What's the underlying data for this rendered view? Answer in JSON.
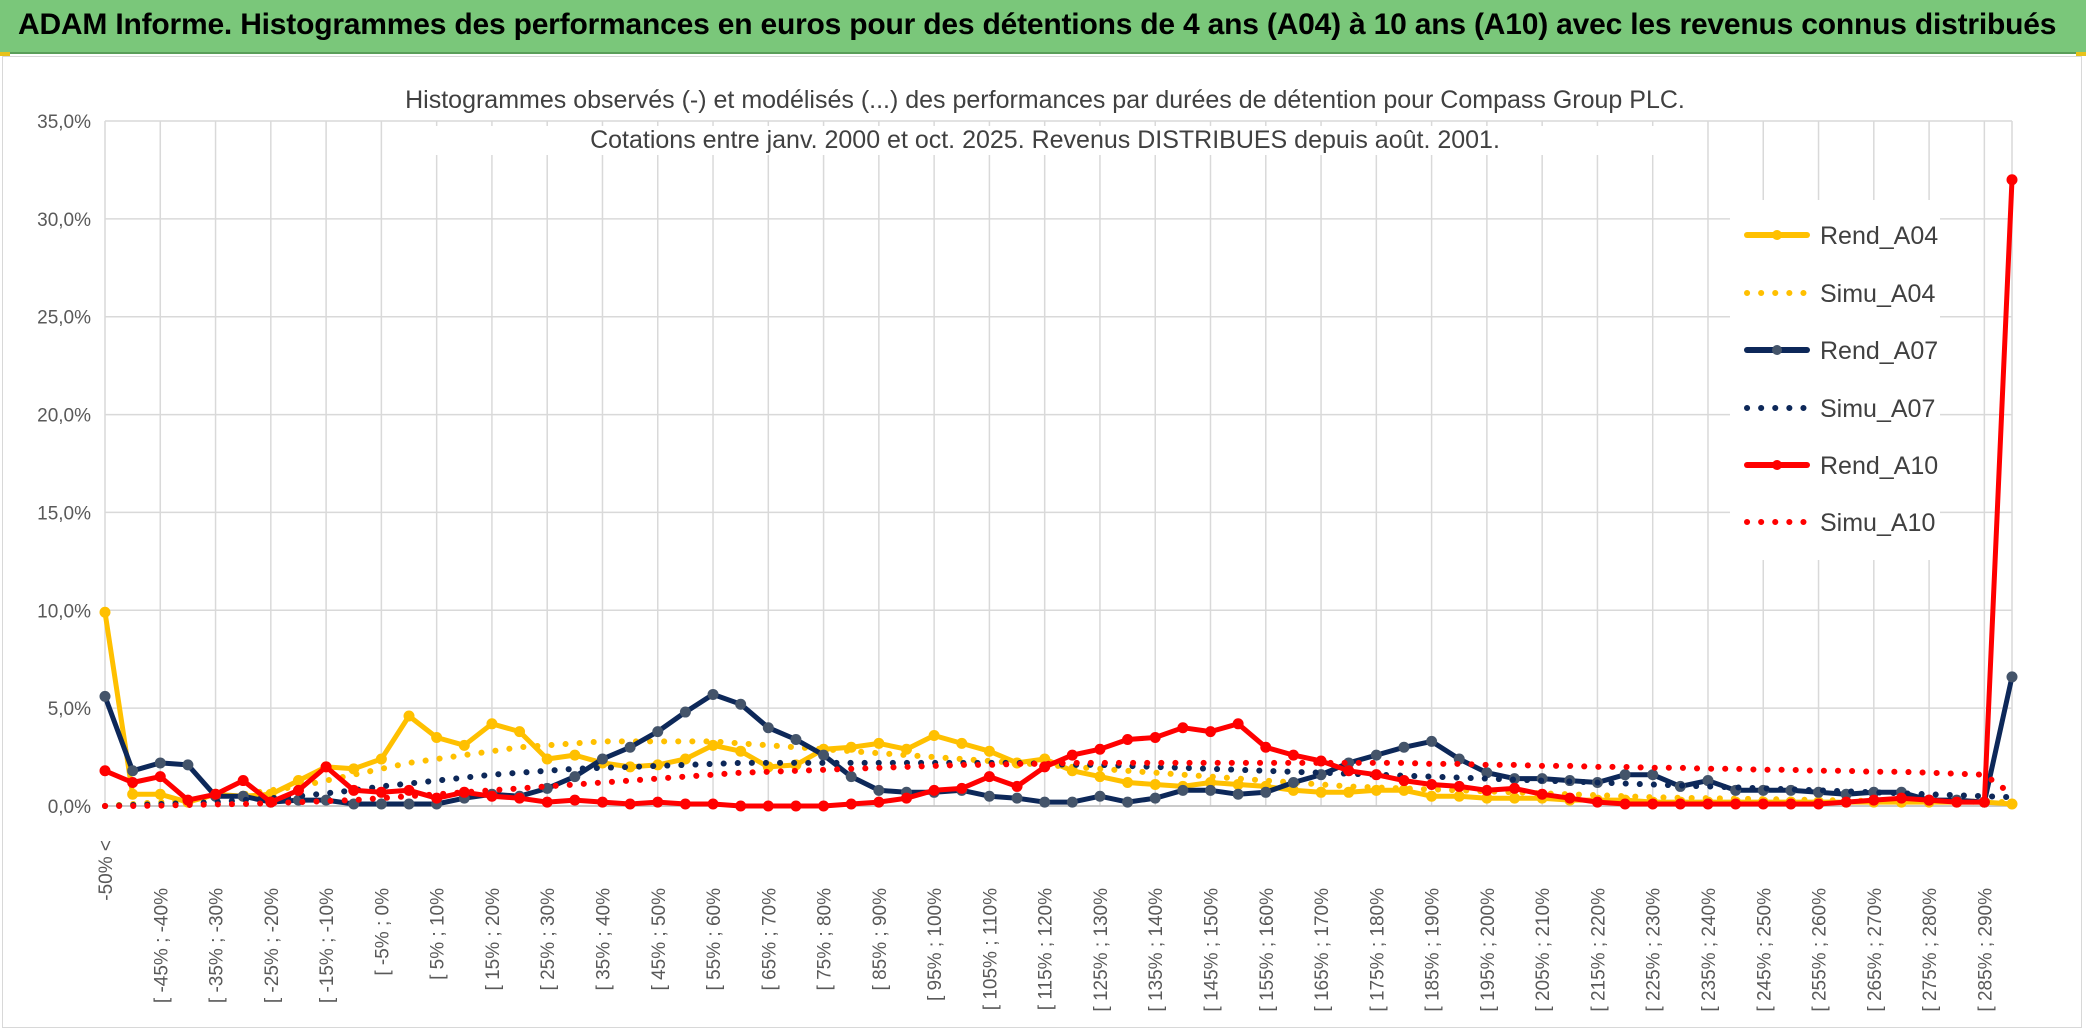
{
  "banner": {
    "title": "ADAM Informe. Histogrammes des performances en euros pour des détentions de 4 ans (A04) à 10 ans (A10) avec les revenus connus distribués"
  },
  "chart_data": {
    "type": "line",
    "title": "Histogrammes observés (-) et modélisés (...) des performances par durées de détention pour Compass Group PLC.",
    "subtitle": "Cotations entre janv. 2000 et oct. 2025. Revenus DISTRIBUES depuis août. 2001.",
    "xlabel": "",
    "ylabel": "",
    "ylim": [
      0,
      35
    ],
    "y_ticks": [
      "0,0%",
      "5,0%",
      "10,0%",
      "15,0%",
      "20,0%",
      "25,0%",
      "30,0%",
      "35,0%"
    ],
    "grid": true,
    "legend_position": "right",
    "x_labels": [
      "-50% <",
      "[ -45% ; -40%",
      "[ -35% ; -30%",
      "[ -25% ; -20%",
      "[ -15% ; -10%",
      "[ -5% ; 0%",
      "[ 5% ; 10%",
      "[ 15% ; 20%",
      "[ 25% ; 30%",
      "[ 35% ; 40%",
      "[ 45% ; 50%",
      "[ 55% ; 60%",
      "[ 65% ; 70%",
      "[ 75% ; 80%",
      "[ 85% ; 90%",
      "[ 95% ; 100%",
      "[ 105% ; 110%",
      "[ 115% ; 120%",
      "[ 125% ; 130%",
      "[ 135% ; 140%",
      "[ 145% ; 150%",
      "[ 155% ; 160%",
      "[ 165% ; 170%",
      "[ 175% ; 180%",
      "[ 185% ; 190%",
      "[ 195% ; 200%",
      "[ 205% ; 210%",
      "[ 215% ; 220%",
      "[ 225% ; 230%",
      "[ 235% ; 240%",
      "[ 245% ; 250%",
      "[ 255% ; 260%",
      "[ 265% ; 270%",
      "[ 275% ; 280%",
      "[ 285% ; 290%"
    ],
    "n_bins": 70,
    "series": [
      {
        "name": "Rend_A04",
        "color": "#ffc000",
        "style": "solid",
        "markers": true,
        "values": [
          9.9,
          0.6,
          0.6,
          0.2,
          0.6,
          0.5,
          0.6,
          1.3,
          2.0,
          1.9,
          2.4,
          4.6,
          3.5,
          3.1,
          4.2,
          3.8,
          2.4,
          2.6,
          2.2,
          2.0,
          2.1,
          2.4,
          3.1,
          2.8,
          2.0,
          2.1,
          2.9,
          3.0,
          3.2,
          2.9,
          3.6,
          3.2,
          2.8,
          2.2,
          2.4,
          1.8,
          1.5,
          1.2,
          1.1,
          1.0,
          1.2,
          1.1,
          1.0,
          0.8,
          0.7,
          0.7,
          0.8,
          0.8,
          0.5,
          0.5,
          0.4,
          0.4,
          0.4,
          0.3,
          0.3,
          0.3,
          0.2,
          0.2,
          0.2,
          0.2,
          0.2,
          0.2,
          0.2,
          0.2,
          0.2,
          0.2,
          0.2,
          0.2,
          0.2,
          0.1
        ]
      },
      {
        "name": "Simu_A04",
        "color": "#ffc000",
        "style": "dotted",
        "markers": false,
        "values": [
          0.0,
          0.1,
          0.2,
          0.3,
          0.4,
          0.6,
          0.8,
          1.0,
          1.3,
          1.6,
          1.9,
          2.2,
          2.4,
          2.6,
          2.8,
          3.0,
          3.1,
          3.2,
          3.3,
          3.3,
          3.3,
          3.3,
          3.3,
          3.2,
          3.1,
          3.0,
          2.9,
          2.8,
          2.7,
          2.6,
          2.5,
          2.4,
          2.3,
          2.2,
          2.1,
          2.0,
          1.9,
          1.8,
          1.7,
          1.6,
          1.5,
          1.4,
          1.3,
          1.2,
          1.1,
          1.0,
          0.95,
          0.9,
          0.85,
          0.8,
          0.75,
          0.7,
          0.65,
          0.6,
          0.55,
          0.5,
          0.45,
          0.42,
          0.4,
          0.38,
          0.35,
          0.33,
          0.3,
          0.28,
          0.26,
          0.25,
          0.24,
          0.23,
          0.22,
          0.2
        ]
      },
      {
        "name": "Rend_A07",
        "color": "#0d2859",
        "style": "solid",
        "markers": true,
        "values": [
          5.6,
          1.8,
          2.2,
          2.1,
          0.5,
          0.5,
          0.2,
          0.3,
          0.3,
          0.1,
          0.1,
          0.1,
          0.1,
          0.4,
          0.6,
          0.5,
          0.9,
          1.5,
          2.4,
          3.0,
          3.8,
          4.8,
          5.7,
          5.2,
          4.0,
          3.4,
          2.6,
          1.5,
          0.8,
          0.7,
          0.7,
          0.8,
          0.5,
          0.4,
          0.2,
          0.2,
          0.5,
          0.2,
          0.4,
          0.8,
          0.8,
          0.6,
          0.7,
          1.2,
          1.6,
          2.2,
          2.6,
          3.0,
          3.3,
          2.4,
          1.7,
          1.4,
          1.4,
          1.3,
          1.2,
          1.6,
          1.6,
          1.0,
          1.3,
          0.8,
          0.8,
          0.8,
          0.7,
          0.6,
          0.7,
          0.7,
          0.3,
          0.3,
          0.2,
          6.6
        ]
      },
      {
        "name": "Simu_A07",
        "color": "#0d2859",
        "style": "dotted",
        "markers": false,
        "values": [
          0.0,
          0.05,
          0.1,
          0.15,
          0.2,
          0.3,
          0.4,
          0.5,
          0.65,
          0.8,
          1.0,
          1.15,
          1.3,
          1.45,
          1.6,
          1.7,
          1.8,
          1.9,
          1.95,
          2.0,
          2.05,
          2.1,
          2.15,
          2.2,
          2.2,
          2.2,
          2.2,
          2.2,
          2.2,
          2.2,
          2.2,
          2.2,
          2.2,
          2.2,
          2.15,
          2.1,
          2.1,
          2.05,
          2.0,
          1.95,
          1.9,
          1.85,
          1.8,
          1.75,
          1.7,
          1.65,
          1.6,
          1.55,
          1.5,
          1.45,
          1.4,
          1.35,
          1.3,
          1.25,
          1.2,
          1.15,
          1.1,
          1.05,
          1.0,
          0.95,
          0.9,
          0.85,
          0.8,
          0.75,
          0.7,
          0.65,
          0.6,
          0.55,
          0.5,
          0.45
        ]
      },
      {
        "name": "Rend_A10",
        "color": "#ff0000",
        "style": "solid",
        "markers": true,
        "values": [
          1.8,
          1.2,
          1.5,
          0.3,
          0.6,
          1.3,
          0.2,
          0.8,
          2.0,
          0.8,
          0.7,
          0.8,
          0.4,
          0.7,
          0.5,
          0.4,
          0.2,
          0.3,
          0.2,
          0.1,
          0.2,
          0.1,
          0.1,
          0.0,
          0.0,
          0.0,
          0.0,
          0.1,
          0.2,
          0.4,
          0.8,
          0.9,
          1.5,
          1.0,
          2.0,
          2.6,
          2.9,
          3.4,
          3.5,
          4.0,
          3.8,
          4.2,
          3.0,
          2.6,
          2.3,
          1.8,
          1.6,
          1.3,
          1.1,
          1.0,
          0.8,
          0.9,
          0.6,
          0.4,
          0.2,
          0.1,
          0.1,
          0.1,
          0.1,
          0.1,
          0.1,
          0.1,
          0.1,
          0.2,
          0.3,
          0.4,
          0.3,
          0.2,
          0.2,
          32.0
        ]
      },
      {
        "name": "Simu_A10",
        "color": "#ff0000",
        "style": "dotted",
        "markers": false,
        "values": [
          0.0,
          0.0,
          0.02,
          0.05,
          0.08,
          0.1,
          0.15,
          0.2,
          0.25,
          0.3,
          0.4,
          0.5,
          0.6,
          0.7,
          0.8,
          0.9,
          1.0,
          1.1,
          1.2,
          1.3,
          1.4,
          1.5,
          1.6,
          1.7,
          1.75,
          1.8,
          1.85,
          1.9,
          1.95,
          2.0,
          2.05,
          2.1,
          2.1,
          2.15,
          2.15,
          2.2,
          2.2,
          2.2,
          2.2,
          2.2,
          2.2,
          2.2,
          2.2,
          2.2,
          2.2,
          2.2,
          2.2,
          2.2,
          2.15,
          2.15,
          2.1,
          2.1,
          2.05,
          2.05,
          2.0,
          2.0,
          1.95,
          1.95,
          1.9,
          1.9,
          1.85,
          1.85,
          1.8,
          1.8,
          1.75,
          1.75,
          1.7,
          1.65,
          1.6,
          0.6
        ]
      }
    ]
  }
}
